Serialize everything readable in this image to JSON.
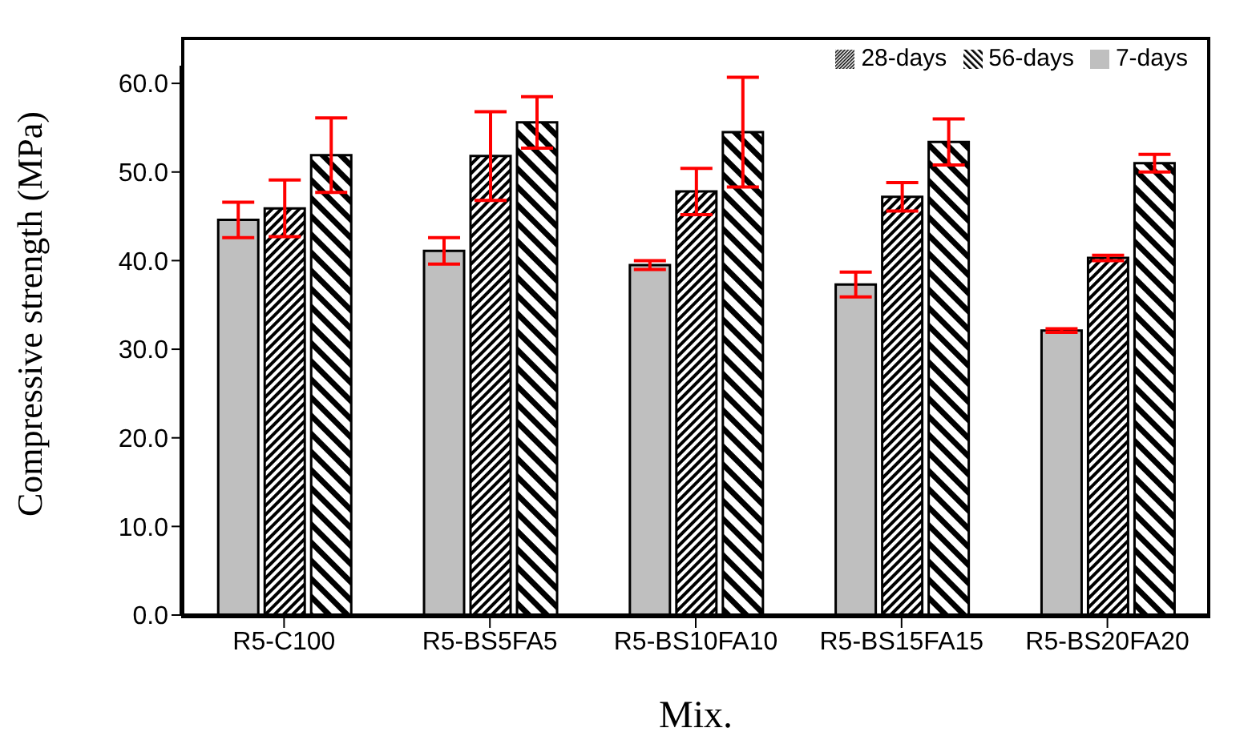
{
  "chart_data": {
    "type": "bar",
    "xlabel": "Mix.",
    "ylabel": "Compressive strength (MPa)",
    "categories": [
      "R5-C100",
      "R5-BS5FA5",
      "R5-BS10FA10",
      "R5-BS15FA15",
      "R5-BS20FA20"
    ],
    "series": [
      {
        "name": "7-days",
        "color": "#bfbfbf",
        "values": [
          44.6,
          41.1,
          39.5,
          37.3,
          32.1
        ],
        "errors": [
          2.0,
          1.5,
          0.5,
          1.4,
          0.2
        ]
      },
      {
        "name": "28-days",
        "color": "#000000",
        "values": [
          45.9,
          51.8,
          47.8,
          47.2,
          40.3
        ],
        "errors": [
          3.2,
          5.0,
          2.6,
          1.6,
          0.3
        ]
      },
      {
        "name": "56-days",
        "color": "#000000",
        "values": [
          51.9,
          55.6,
          54.5,
          53.4,
          51.0
        ],
        "errors": [
          4.2,
          2.9,
          6.2,
          2.6,
          1.0
        ]
      }
    ],
    "ylim": [
      0,
      62
    ],
    "yticks": [
      {
        "value": 0,
        "label": "0.0"
      },
      {
        "value": 10,
        "label": "10.0"
      },
      {
        "value": 20,
        "label": "20.0"
      },
      {
        "value": 30,
        "label": "30.0"
      },
      {
        "value": 40,
        "label": "40.0"
      },
      {
        "value": 50,
        "label": "50.0"
      },
      {
        "value": 60,
        "label": "60.0"
      }
    ],
    "grid": false,
    "legend": "top right"
  }
}
